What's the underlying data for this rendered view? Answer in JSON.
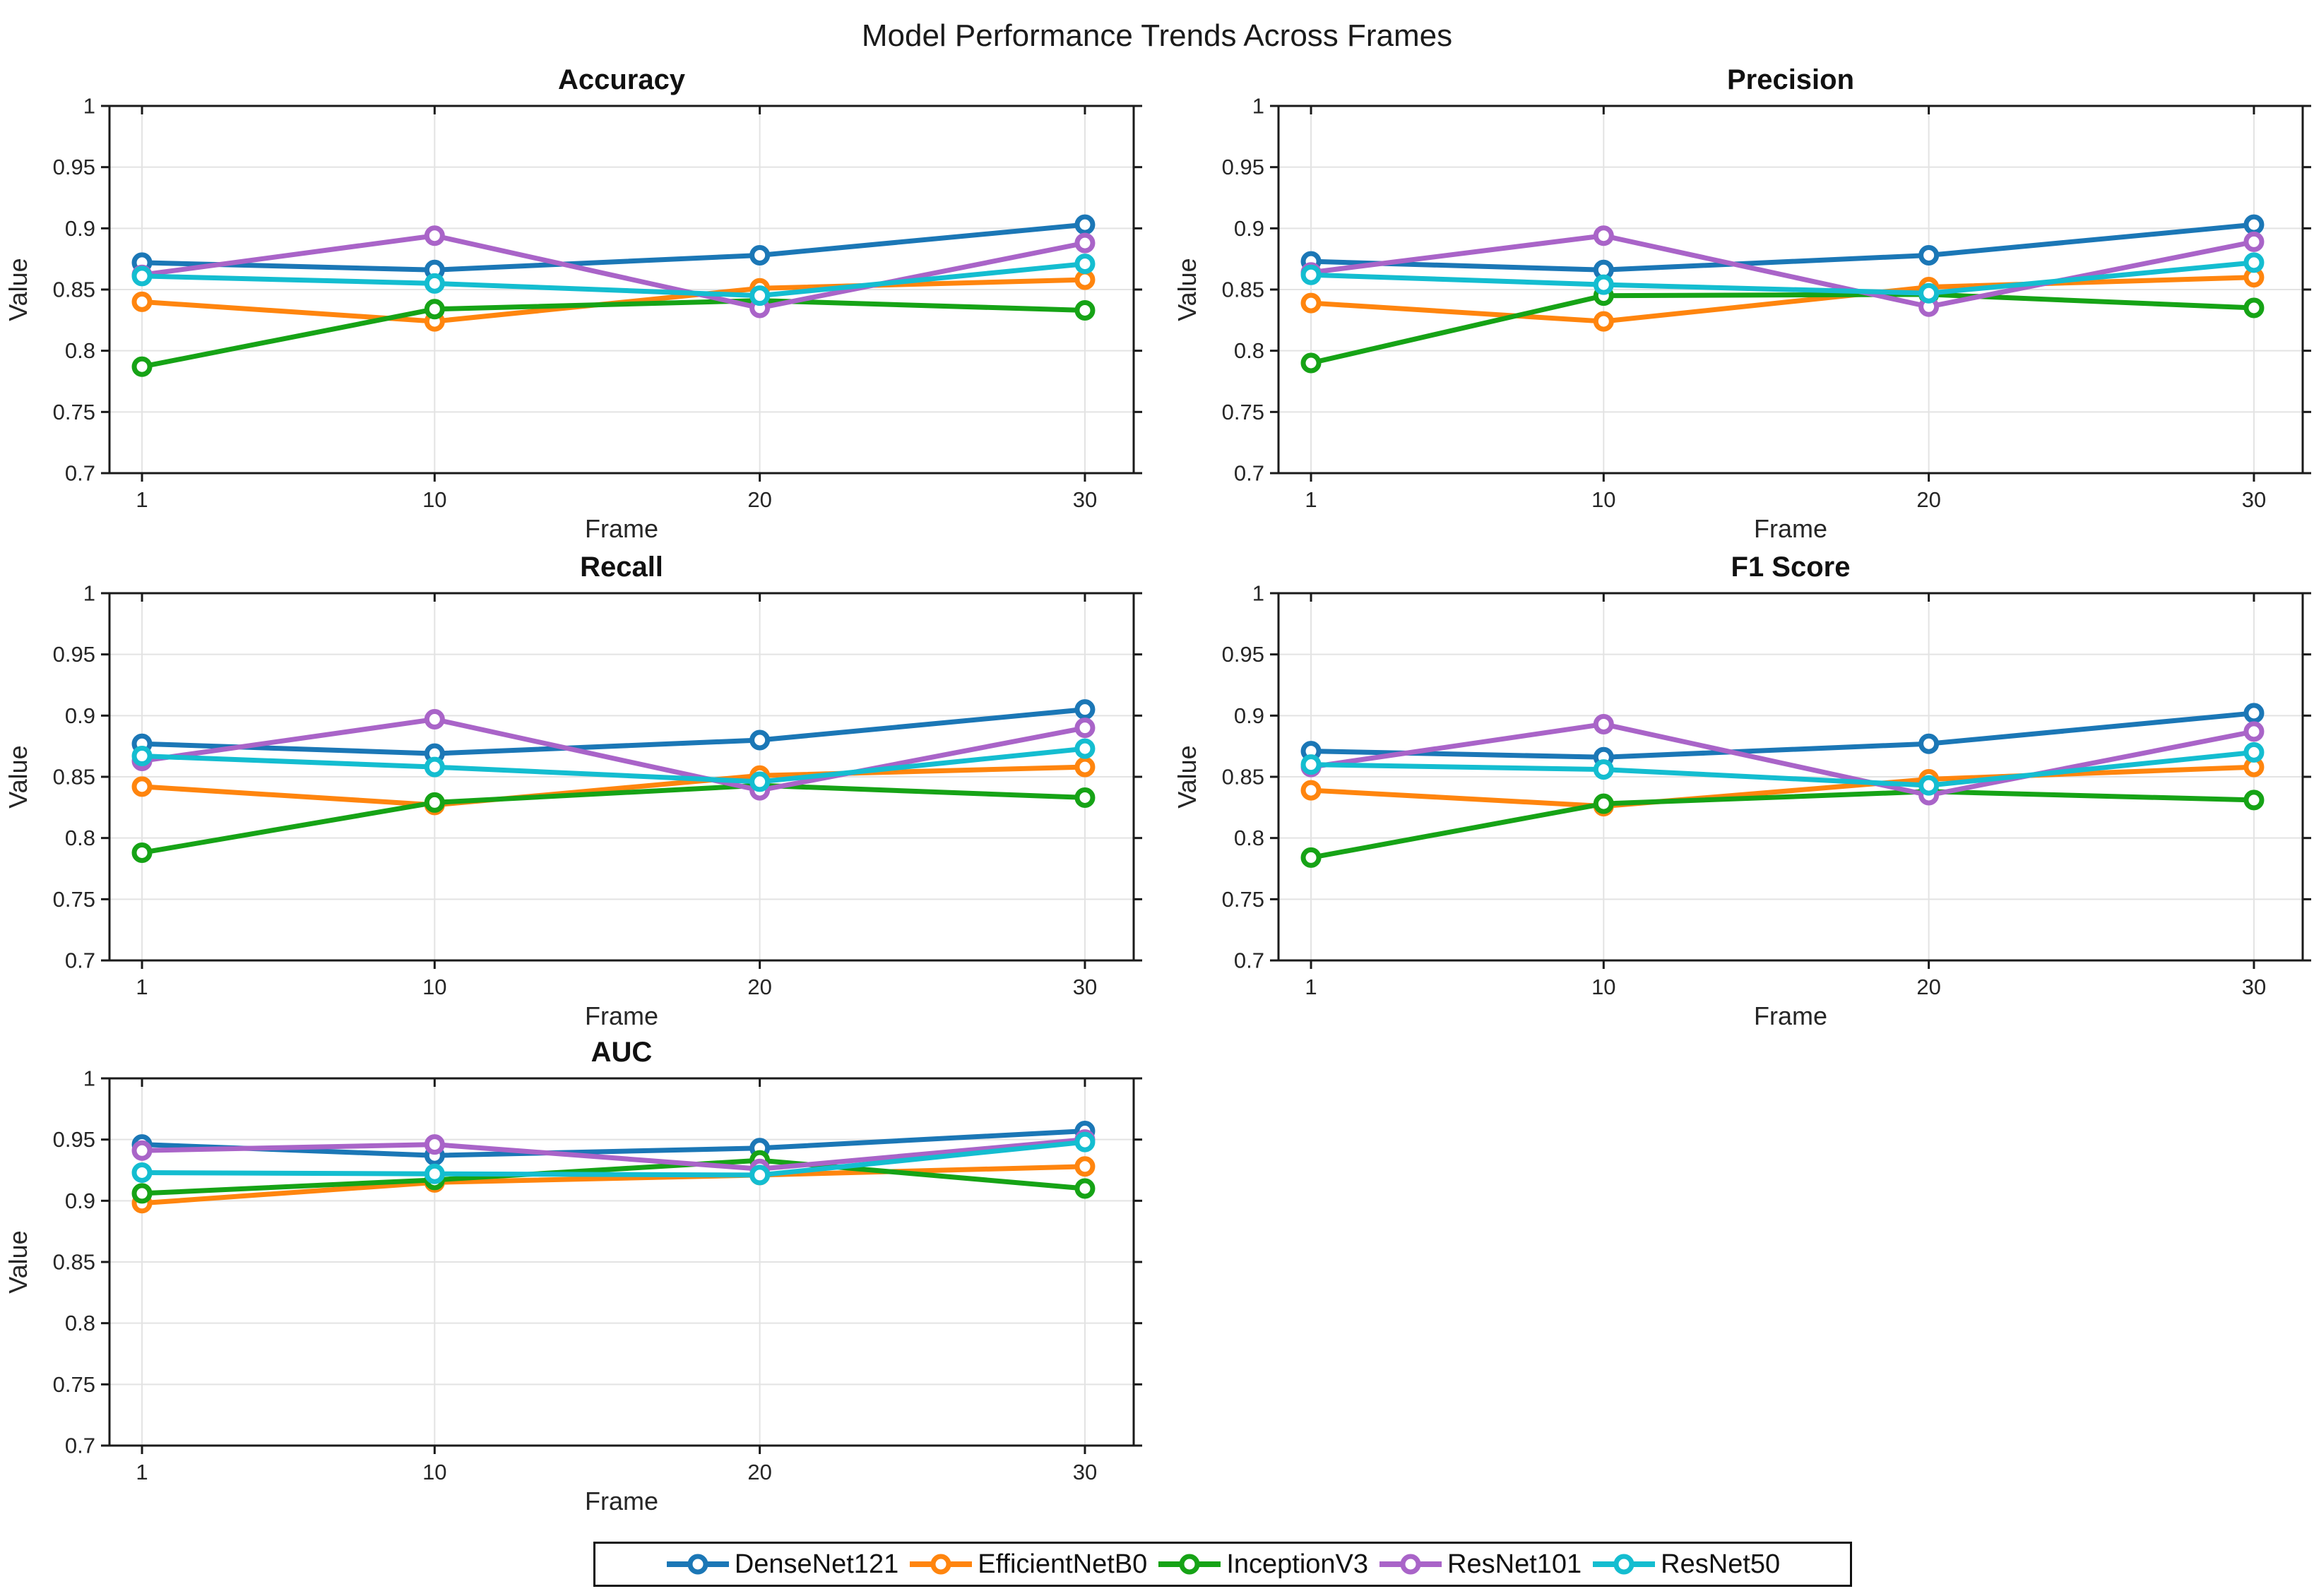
{
  "title": "Model Performance Trends Across Frames",
  "axes_defaults": {
    "xlabel": "Frame",
    "ylabel": "Value",
    "x_ticks": [
      1,
      10,
      20,
      30
    ],
    "y_ticks": [
      0.7,
      0.75,
      0.8,
      0.85,
      0.9,
      0.95,
      1
    ],
    "y_tick_labels": [
      "0.7",
      "0.75",
      "0.8",
      "0.85",
      "0.9",
      "0.95",
      "1"
    ],
    "xlim": [
      0,
      31.5
    ],
    "ylim": [
      0.7,
      1.0
    ],
    "grid": true,
    "grid_color": "#e3e3e3",
    "axis_color": "#1a1a1a",
    "tick_label_color": "#262626"
  },
  "models": [
    {
      "name": "DenseNet121",
      "color": "#1b77b6"
    },
    {
      "name": "EfficientNetB0",
      "color": "#ff850e"
    },
    {
      "name": "InceptionV3",
      "color": "#16a316"
    },
    {
      "name": "ResNet101",
      "color": "#a964c8"
    },
    {
      "name": "ResNet50",
      "color": "#14bdd0"
    }
  ],
  "legend": {
    "position": "bottom-center",
    "entries": [
      "DenseNet121",
      "EfficientNetB0",
      "InceptionV3",
      "ResNet101",
      "ResNet50"
    ]
  },
  "chart_data": [
    {
      "type": "line",
      "title": "Accuracy",
      "xlabel": "Frame",
      "ylabel": "Value",
      "x": [
        1,
        10,
        20,
        30
      ],
      "ylim": [
        0.7,
        1.0
      ],
      "series": [
        {
          "name": "DenseNet121",
          "values": [
            0.872,
            0.866,
            0.878,
            0.903
          ]
        },
        {
          "name": "EfficientNetB0",
          "values": [
            0.84,
            0.824,
            0.851,
            0.858
          ]
        },
        {
          "name": "InceptionV3",
          "values": [
            0.787,
            0.834,
            0.841,
            0.833
          ]
        },
        {
          "name": "ResNet101",
          "values": [
            0.862,
            0.894,
            0.835,
            0.888
          ]
        },
        {
          "name": "ResNet50",
          "values": [
            0.861,
            0.855,
            0.845,
            0.871
          ]
        }
      ]
    },
    {
      "type": "line",
      "title": "Precision",
      "xlabel": "Frame",
      "ylabel": "Value",
      "x": [
        1,
        10,
        20,
        30
      ],
      "ylim": [
        0.7,
        1.0
      ],
      "series": [
        {
          "name": "DenseNet121",
          "values": [
            0.873,
            0.866,
            0.878,
            0.903
          ]
        },
        {
          "name": "EfficientNetB0",
          "values": [
            0.839,
            0.824,
            0.852,
            0.86
          ]
        },
        {
          "name": "InceptionV3",
          "values": [
            0.79,
            0.845,
            0.846,
            0.835
          ]
        },
        {
          "name": "ResNet101",
          "values": [
            0.864,
            0.894,
            0.836,
            0.889
          ]
        },
        {
          "name": "ResNet50",
          "values": [
            0.862,
            0.854,
            0.847,
            0.872
          ]
        }
      ]
    },
    {
      "type": "line",
      "title": "Recall",
      "xlabel": "Frame",
      "ylabel": "Value",
      "x": [
        1,
        10,
        20,
        30
      ],
      "ylim": [
        0.7,
        1.0
      ],
      "series": [
        {
          "name": "DenseNet121",
          "values": [
            0.877,
            0.869,
            0.88,
            0.905
          ]
        },
        {
          "name": "EfficientNetB0",
          "values": [
            0.842,
            0.827,
            0.851,
            0.858
          ]
        },
        {
          "name": "InceptionV3",
          "values": [
            0.788,
            0.829,
            0.843,
            0.833
          ]
        },
        {
          "name": "ResNet101",
          "values": [
            0.863,
            0.897,
            0.839,
            0.89
          ]
        },
        {
          "name": "ResNet50",
          "values": [
            0.867,
            0.858,
            0.846,
            0.873
          ]
        }
      ]
    },
    {
      "type": "line",
      "title": "F1 Score",
      "xlabel": "Frame",
      "ylabel": "Value",
      "x": [
        1,
        10,
        20,
        30
      ],
      "ylim": [
        0.7,
        1.0
      ],
      "series": [
        {
          "name": "DenseNet121",
          "values": [
            0.871,
            0.866,
            0.877,
            0.902
          ]
        },
        {
          "name": "EfficientNetB0",
          "values": [
            0.839,
            0.826,
            0.848,
            0.858
          ]
        },
        {
          "name": "InceptionV3",
          "values": [
            0.784,
            0.828,
            0.838,
            0.831
          ]
        },
        {
          "name": "ResNet101",
          "values": [
            0.858,
            0.893,
            0.835,
            0.887
          ]
        },
        {
          "name": "ResNet50",
          "values": [
            0.86,
            0.856,
            0.843,
            0.87
          ]
        }
      ]
    },
    {
      "type": "line",
      "title": "AUC",
      "xlabel": "Frame",
      "ylabel": "Value",
      "x": [
        1,
        10,
        20,
        30
      ],
      "ylim": [
        0.7,
        1.0
      ],
      "series": [
        {
          "name": "DenseNet121",
          "values": [
            0.946,
            0.937,
            0.943,
            0.957
          ]
        },
        {
          "name": "EfficientNetB0",
          "values": [
            0.898,
            0.915,
            0.921,
            0.928
          ]
        },
        {
          "name": "InceptionV3",
          "values": [
            0.906,
            0.917,
            0.933,
            0.91
          ]
        },
        {
          "name": "ResNet101",
          "values": [
            0.941,
            0.946,
            0.926,
            0.95
          ]
        },
        {
          "name": "ResNet50",
          "values": [
            0.923,
            0.922,
            0.921,
            0.948
          ]
        }
      ]
    }
  ]
}
